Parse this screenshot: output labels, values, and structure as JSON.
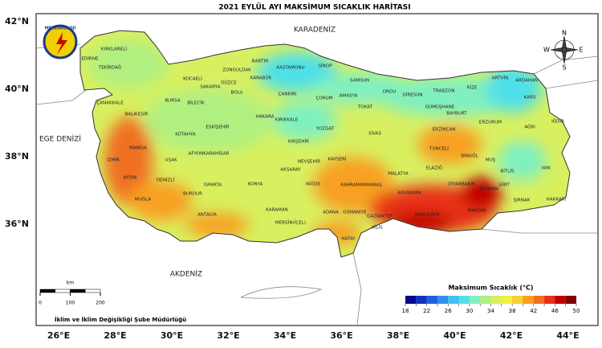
{
  "header": {
    "title": "2021 EYLÜL AYI MAKSİMUM SICAKLIK HARİTASI"
  },
  "logo": "METEOROLOJİ",
  "axes": {
    "lat_labels": [
      "42°N",
      "40°N",
      "38°N",
      "36°N"
    ],
    "lon_labels": [
      "26°E",
      "28°E",
      "30°E",
      "32°E",
      "34°E",
      "36°E",
      "38°E",
      "40°E",
      "42°E",
      "44°E"
    ]
  },
  "seas": [
    "KARADENİZ",
    "EGE DENİZİ",
    "AKDENİZ"
  ],
  "provinces": [
    "EDİRNE",
    "KIRKLARELİ",
    "TEKİRDAĞ",
    "ÇANAKKALE",
    "BALIKESİR",
    "BURSA",
    "KOCAELİ",
    "SAKARYA",
    "DÜZCE",
    "ZONGULDAK",
    "BARTIN",
    "KARABÜK",
    "KASTAMONU",
    "SİNOP",
    "SAMSUN",
    "BOLU",
    "ÇANKIRI",
    "ÇORUM",
    "AMASYA",
    "TOKAT",
    "ORDU",
    "GİRESUN",
    "TRABZON",
    "RİZE",
    "ARTVİN",
    "ARDAHAN",
    "KARS",
    "GÜMÜŞHANE",
    "BAYBURT",
    "ERZURUM",
    "AĞRI",
    "IĞDIR",
    "ERZİNCAN",
    "TUNCELİ",
    "BİNGÖL",
    "MUŞ",
    "BİTLİS",
    "VAN",
    "ELAZIĞ",
    "MALATYA",
    "SİVAS",
    "YOZGAT",
    "KIRIKKALE",
    "ANKARA",
    "ESKİŞEHİR",
    "BİLECİK",
    "KÜTAHYA",
    "AFYONKARAHİSAR",
    "UŞAK",
    "MANİSA",
    "İZMİR",
    "AYDIN",
    "DENİZLİ",
    "MUĞLA",
    "BURDUR",
    "ISPARTA",
    "ANTALYA",
    "KONYA",
    "KARAMAN",
    "AKSARAY",
    "NİĞDE",
    "NEVŞEHİR",
    "KIRŞEHİR",
    "KAYSERİ",
    "KAHRAMANMARAŞ",
    "ADIYAMAN",
    "DİYARBAKIR",
    "BATMAN",
    "SİİRT",
    "ŞIRNAK",
    "HAKKARİ",
    "MARDİN",
    "ŞANLIURFA",
    "GAZİANTEP",
    "OSMANİYE",
    "ADANA",
    "MERSİN(İÇEL)",
    "HATAY",
    "KİLİS"
  ],
  "compass": {
    "n": "N",
    "e": "E",
    "s": "S",
    "w": "W"
  },
  "scale_bar": {
    "unit": "km",
    "ticks": [
      0,
      100,
      200
    ]
  },
  "legend": {
    "title": "Maksimum Sıcaklık (°C)",
    "ticks": [
      18,
      20,
      22,
      24,
      26,
      28,
      30,
      32,
      34,
      36,
      38,
      40,
      42,
      44,
      46,
      48,
      50
    ],
    "tick_labels_shown": [
      18,
      22,
      26,
      30,
      34,
      38,
      42,
      46,
      50
    ],
    "colors": [
      "#08088c",
      "#1530c0",
      "#2060e0",
      "#3090f0",
      "#40c0f0",
      "#50e0e8",
      "#80f0c0",
      "#b0f080",
      "#d8f060",
      "#f0f040",
      "#f8d030",
      "#f8a020",
      "#f07020",
      "#e83018",
      "#c00000",
      "#800000"
    ]
  },
  "footer": "İklim ve İklim Değişikliği Şube Müdürlüğü"
}
